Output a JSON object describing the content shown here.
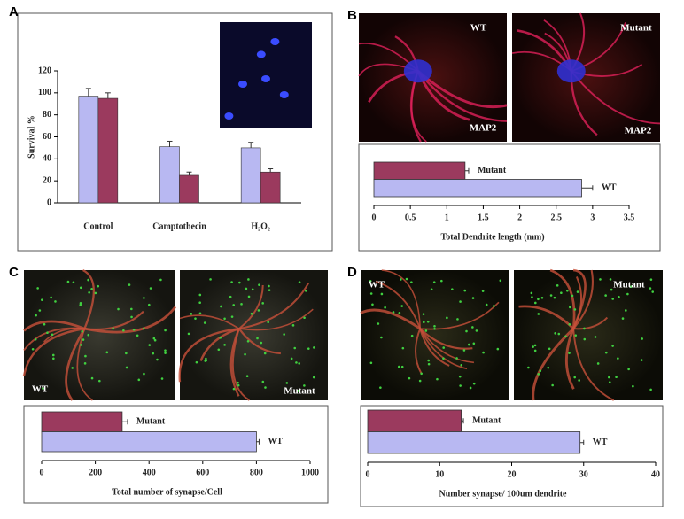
{
  "chart_data": [
    {
      "type": "bar",
      "panel": "A",
      "ylabel": "Survival %",
      "categories": [
        "Control",
        "Camptothecin",
        "H₂O₂"
      ],
      "series": [
        {
          "color": "#b8b8f2",
          "values": [
            97,
            51,
            50
          ],
          "errors": [
            7,
            5,
            5
          ]
        },
        {
          "color": "#9b3a5e",
          "values": [
            95,
            25,
            28
          ],
          "errors": [
            5,
            3,
            3
          ]
        }
      ],
      "ylim": [
        0,
        120
      ],
      "yticks": [
        0,
        20,
        40,
        60,
        80,
        100,
        120
      ]
    },
    {
      "type": "hbar",
      "panel": "B",
      "xlabel": "Total Dendrite length (mm)",
      "image_labels": [
        "WT",
        "Mutant",
        "MAP2",
        "MAP2"
      ],
      "categories": [
        "Mutant",
        "WT"
      ],
      "values": [
        1.25,
        2.85
      ],
      "errors": [
        0.05,
        0.15
      ],
      "colors": [
        "#9b3a5e",
        "#b8b8f2"
      ],
      "xlim": [
        0,
        3.5
      ],
      "xticks": [
        0,
        0.5,
        1,
        1.5,
        2,
        2.5,
        3,
        3.5
      ]
    },
    {
      "type": "hbar",
      "panel": "C",
      "xlabel": "Total number of synapse/Cell",
      "image_labels": [
        "WT",
        "Mutant"
      ],
      "categories": [
        "Mutant",
        "WT"
      ],
      "values": [
        300,
        800
      ],
      "errors": [
        20,
        10
      ],
      "colors": [
        "#9b3a5e",
        "#b8b8f2"
      ],
      "xlim": [
        0,
        1000
      ],
      "xticks": [
        0,
        200,
        400,
        600,
        800,
        1000
      ]
    },
    {
      "type": "hbar",
      "panel": "D",
      "xlabel": "Number synapse/ 100um dendrite",
      "image_labels": [
        "WT",
        "Mutant"
      ],
      "categories": [
        "Mutant",
        "WT"
      ],
      "values": [
        13,
        29.5
      ],
      "errors": [
        0.3,
        0.5
      ],
      "colors": [
        "#9b3a5e",
        "#b8b8f2"
      ],
      "xlim": [
        0,
        40
      ],
      "xticks": [
        0,
        10,
        20,
        30,
        40
      ]
    }
  ]
}
